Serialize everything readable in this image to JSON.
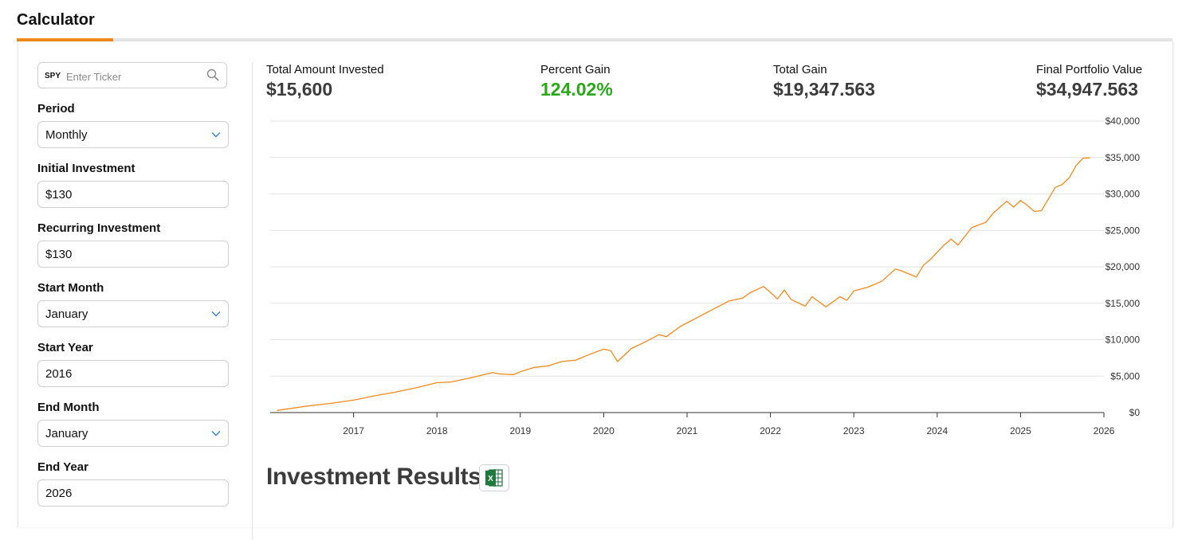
{
  "header": {
    "title": "Calculator"
  },
  "colors": {
    "accent": "#f08a1c",
    "gain_green": "#2aa81a",
    "line": "#f08a1c"
  },
  "ticker": {
    "symbol": "SPY",
    "placeholder": "Enter Ticker",
    "icon": "search-icon"
  },
  "fields": {
    "period": {
      "label": "Period",
      "value": "Monthly"
    },
    "initial": {
      "label": "Initial Investment",
      "value": "$130"
    },
    "recurring": {
      "label": "Recurring Investment",
      "value": "$130"
    },
    "start_month": {
      "label": "Start Month",
      "value": "January"
    },
    "start_year": {
      "label": "Start Year",
      "value": "2016"
    },
    "end_month": {
      "label": "End Month",
      "value": "January"
    },
    "end_year": {
      "label": "End Year",
      "value": "2026"
    }
  },
  "stats": {
    "invested": {
      "label": "Total Amount Invested",
      "value": "$15,600"
    },
    "percent": {
      "label": "Percent Gain",
      "value": "124.02%"
    },
    "gain": {
      "label": "Total Gain",
      "value": "$19,347.563"
    },
    "final": {
      "label": "Final Portfolio Value",
      "value": "$34,947.563"
    }
  },
  "results": {
    "title": "Investment Results",
    "export_icon": "excel-icon"
  },
  "chart_data": {
    "type": "line",
    "title": "",
    "xlabel": "",
    "ylabel": "",
    "x_ticks": [
      "2017",
      "2018",
      "2019",
      "2020",
      "2021",
      "2022",
      "2023",
      "2024",
      "2025",
      "2026"
    ],
    "y_ticks": [
      "$0",
      "$5,000",
      "$10,000",
      "$15,000",
      "$20,000",
      "$25,000",
      "$30,000",
      "$35,000",
      "$40,000"
    ],
    "ylim": [
      0,
      40000
    ],
    "xlim": [
      "2016-01",
      "2026-01"
    ],
    "grid": true,
    "series": [
      {
        "points": [
          [
            "2016-02",
            300
          ],
          [
            "2016-06",
            850
          ],
          [
            "2016-10",
            1300
          ],
          [
            "2017-01",
            1700
          ],
          [
            "2017-04",
            2300
          ],
          [
            "2017-07",
            2800
          ],
          [
            "2017-10",
            3400
          ],
          [
            "2018-01",
            4100
          ],
          [
            "2018-03",
            4200
          ],
          [
            "2018-06",
            4800
          ],
          [
            "2018-09",
            5500
          ],
          [
            "2018-10",
            5300
          ],
          [
            "2018-12",
            5200
          ],
          [
            "2019-01",
            5600
          ],
          [
            "2019-03",
            6200
          ],
          [
            "2019-05",
            6400
          ],
          [
            "2019-07",
            7000
          ],
          [
            "2019-09",
            7200
          ],
          [
            "2019-11",
            8000
          ],
          [
            "2020-01",
            8700
          ],
          [
            "2020-02",
            8500
          ],
          [
            "2020-03",
            7000
          ],
          [
            "2020-05",
            8800
          ],
          [
            "2020-07",
            9700
          ],
          [
            "2020-09",
            10700
          ],
          [
            "2020-10",
            10400
          ],
          [
            "2020-12",
            11800
          ],
          [
            "2021-03",
            13300
          ],
          [
            "2021-05",
            14300
          ],
          [
            "2021-07",
            15300
          ],
          [
            "2021-09",
            15700
          ],
          [
            "2021-10",
            16400
          ],
          [
            "2021-12",
            17300
          ],
          [
            "2022-01",
            16500
          ],
          [
            "2022-02",
            15600
          ],
          [
            "2022-03",
            16800
          ],
          [
            "2022-04",
            15500
          ],
          [
            "2022-06",
            14600
          ],
          [
            "2022-07",
            15900
          ],
          [
            "2022-09",
            14500
          ],
          [
            "2022-11",
            15900
          ],
          [
            "2022-12",
            15400
          ],
          [
            "2023-01",
            16700
          ],
          [
            "2023-03",
            17200
          ],
          [
            "2023-05",
            18000
          ],
          [
            "2023-07",
            19700
          ],
          [
            "2023-08",
            19400
          ],
          [
            "2023-10",
            18600
          ],
          [
            "2023-11",
            20200
          ],
          [
            "2023-12",
            21000
          ],
          [
            "2024-02",
            23000
          ],
          [
            "2024-03",
            23800
          ],
          [
            "2024-04",
            23000
          ],
          [
            "2024-06",
            25400
          ],
          [
            "2024-08",
            26100
          ],
          [
            "2024-09",
            27300
          ],
          [
            "2024-11",
            29000
          ],
          [
            "2024-12",
            28200
          ],
          [
            "2025-01",
            29100
          ],
          [
            "2025-02",
            28400
          ],
          [
            "2025-03",
            27600
          ],
          [
            "2025-04",
            27700
          ],
          [
            "2025-06",
            30900
          ],
          [
            "2025-07",
            31300
          ],
          [
            "2025-08",
            32200
          ],
          [
            "2025-09",
            33900
          ],
          [
            "2025-10",
            34900
          ],
          [
            "2025-11",
            34950
          ]
        ]
      }
    ]
  }
}
